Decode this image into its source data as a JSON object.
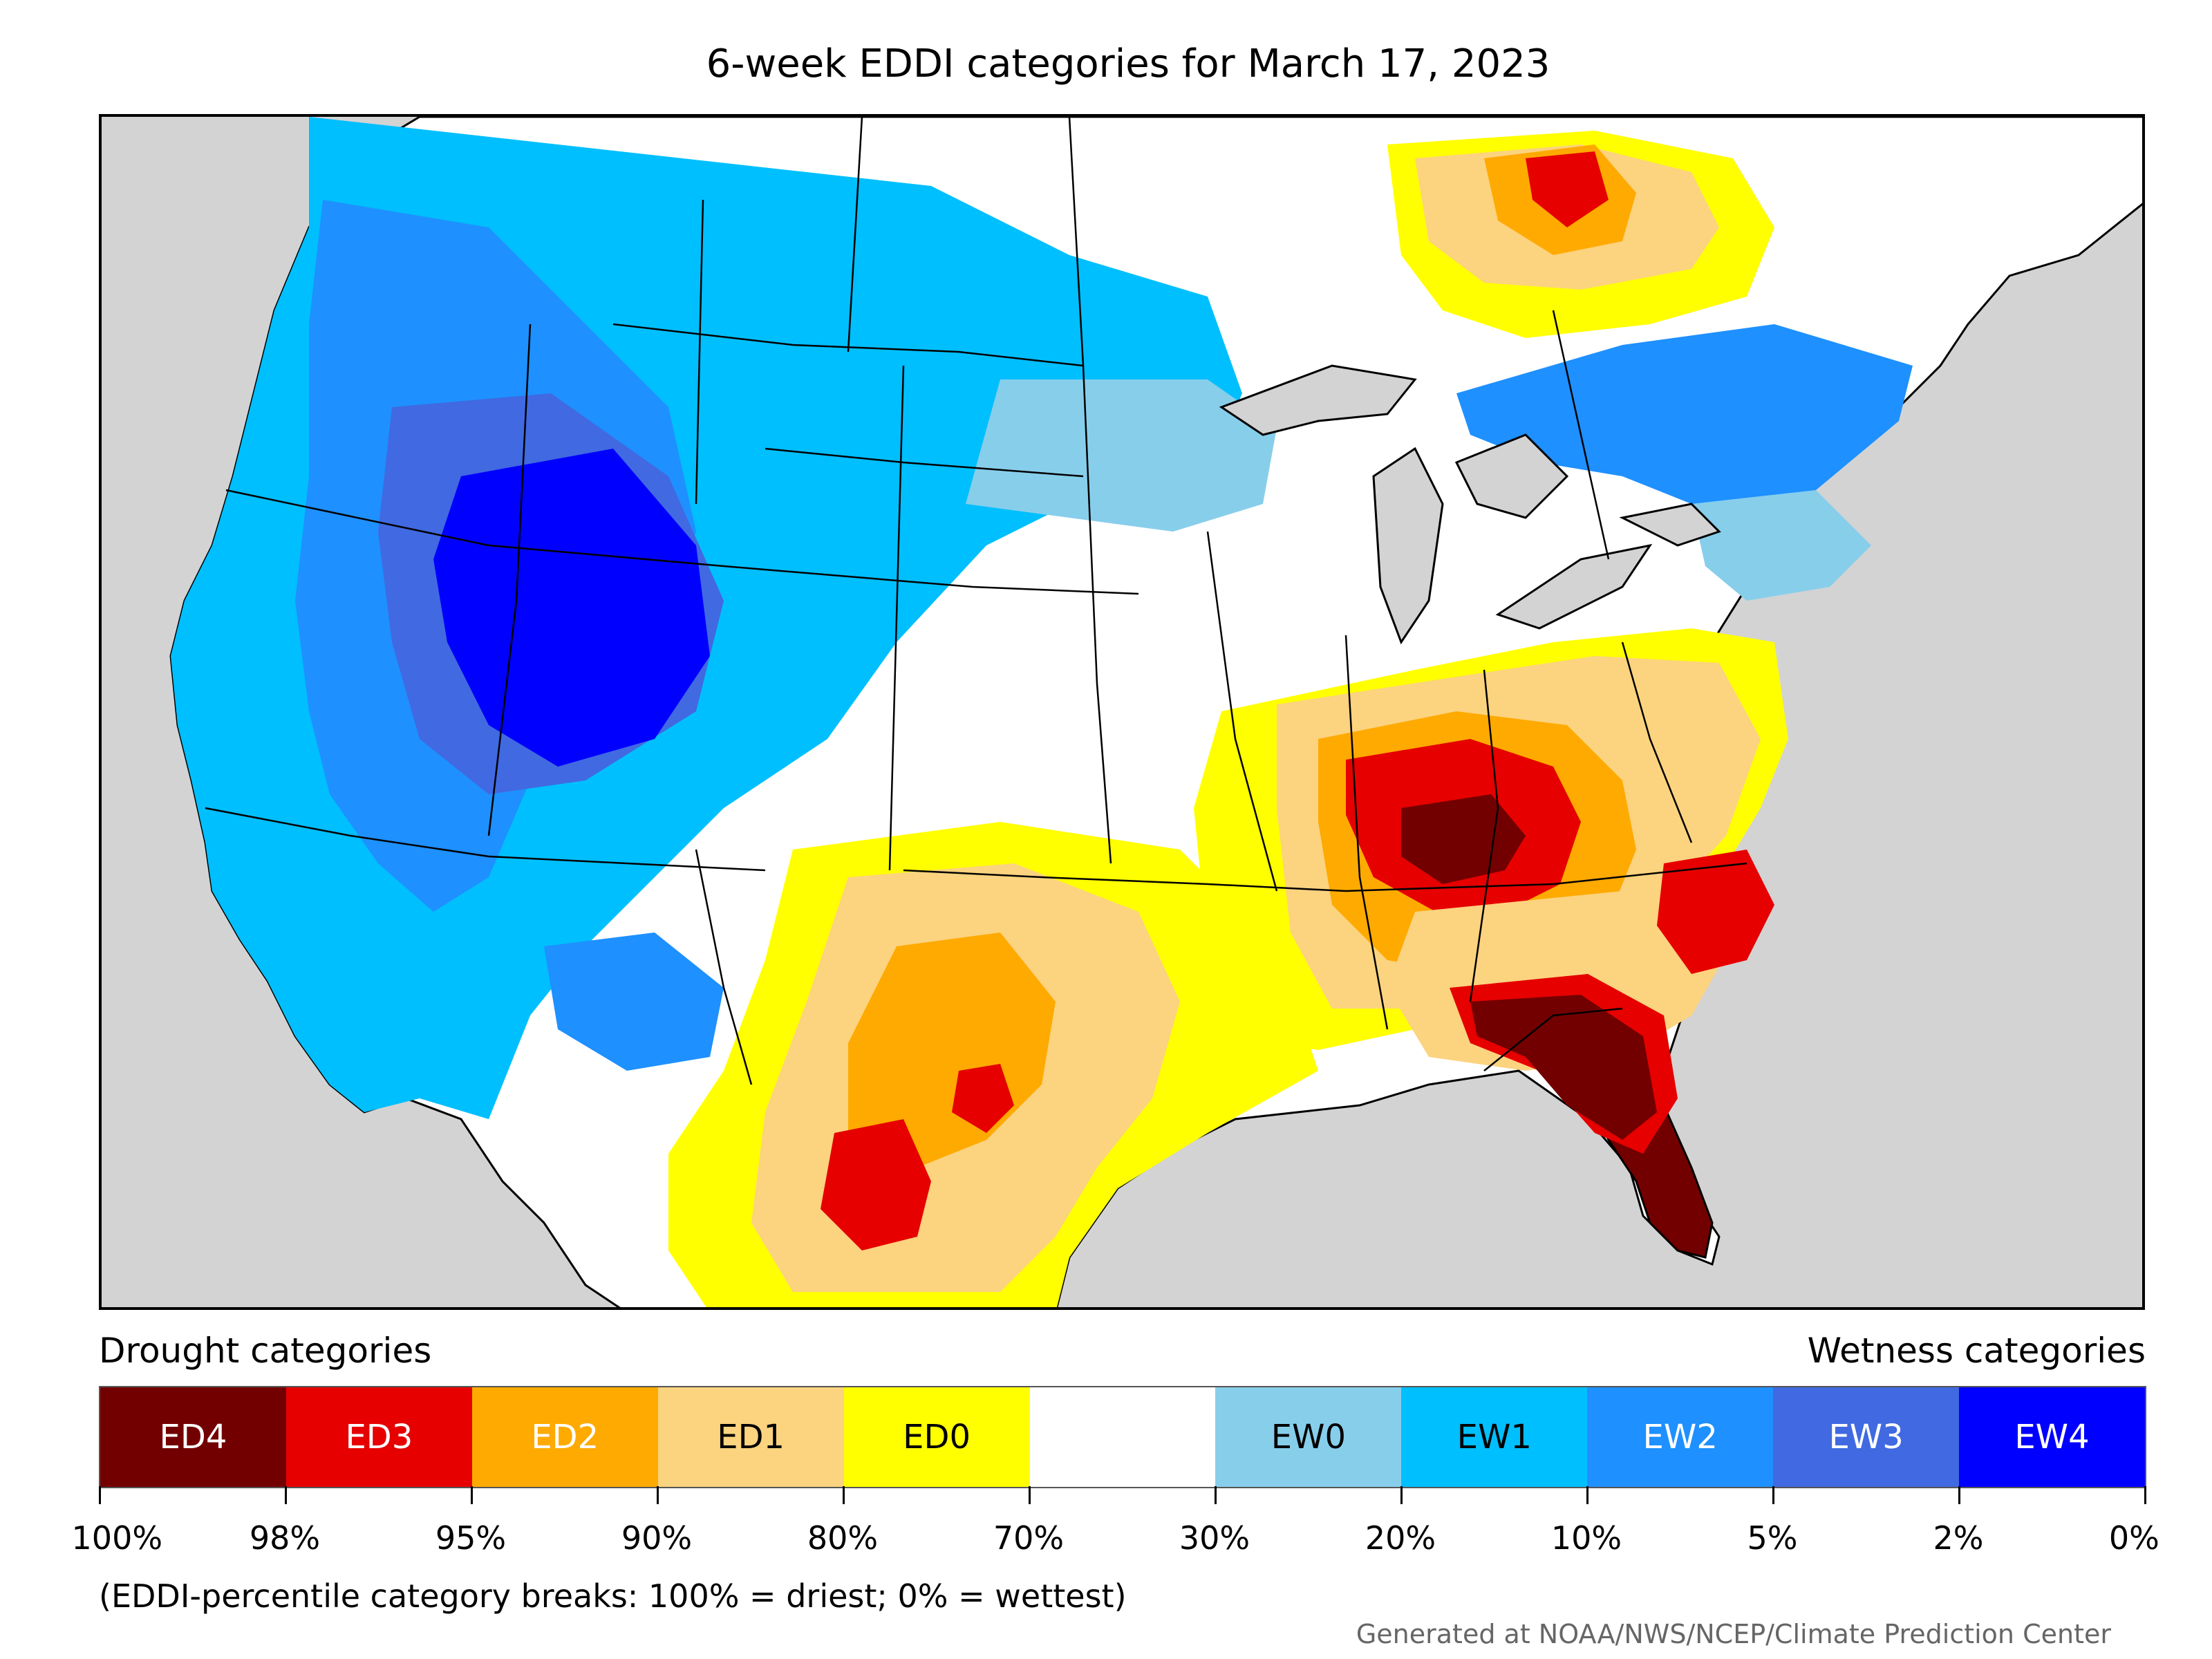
{
  "title": "6-week EDDI categories for March 17, 2023",
  "legend": {
    "drought_heading": "Drought categories",
    "wetness_heading": "Wetness categories",
    "categories": [
      {
        "label": "ED4",
        "color": "#730000",
        "text_color": "#ffffff"
      },
      {
        "label": "ED3",
        "color": "#e60000",
        "text_color": "#ffffff"
      },
      {
        "label": "ED2",
        "color": "#ffaa00",
        "text_color": "#ffffff"
      },
      {
        "label": "ED1",
        "color": "#fcd37f",
        "text_color": "#000000"
      },
      {
        "label": "ED0",
        "color": "#ffff00",
        "text_color": "#000000"
      },
      {
        "label": "",
        "color": "#ffffff",
        "text_color": "#000000"
      },
      {
        "label": "EW0",
        "color": "#87ceeb",
        "text_color": "#000000"
      },
      {
        "label": "EW1",
        "color": "#00bfff",
        "text_color": "#000000"
      },
      {
        "label": "EW2",
        "color": "#1e90ff",
        "text_color": "#ffffff"
      },
      {
        "label": "EW3",
        "color": "#4169e1",
        "text_color": "#ffffff"
      },
      {
        "label": "EW4",
        "color": "#0000ff",
        "text_color": "#ffffff"
      }
    ],
    "breaks": [
      "100%",
      "98%",
      "95%",
      "90%",
      "80%",
      "70%",
      "30%",
      "20%",
      "10%",
      "5%",
      "2%",
      "0%"
    ]
  },
  "note": "(EDDI-percentile category breaks: 100% = driest; 0% = wettest)",
  "credit": "Generated at NOAA/NWS/NCEP/Climate Prediction Center",
  "colors": {
    "ocean": "#d3d3d3",
    "land": "#ffffff",
    "border": "#000000"
  }
}
